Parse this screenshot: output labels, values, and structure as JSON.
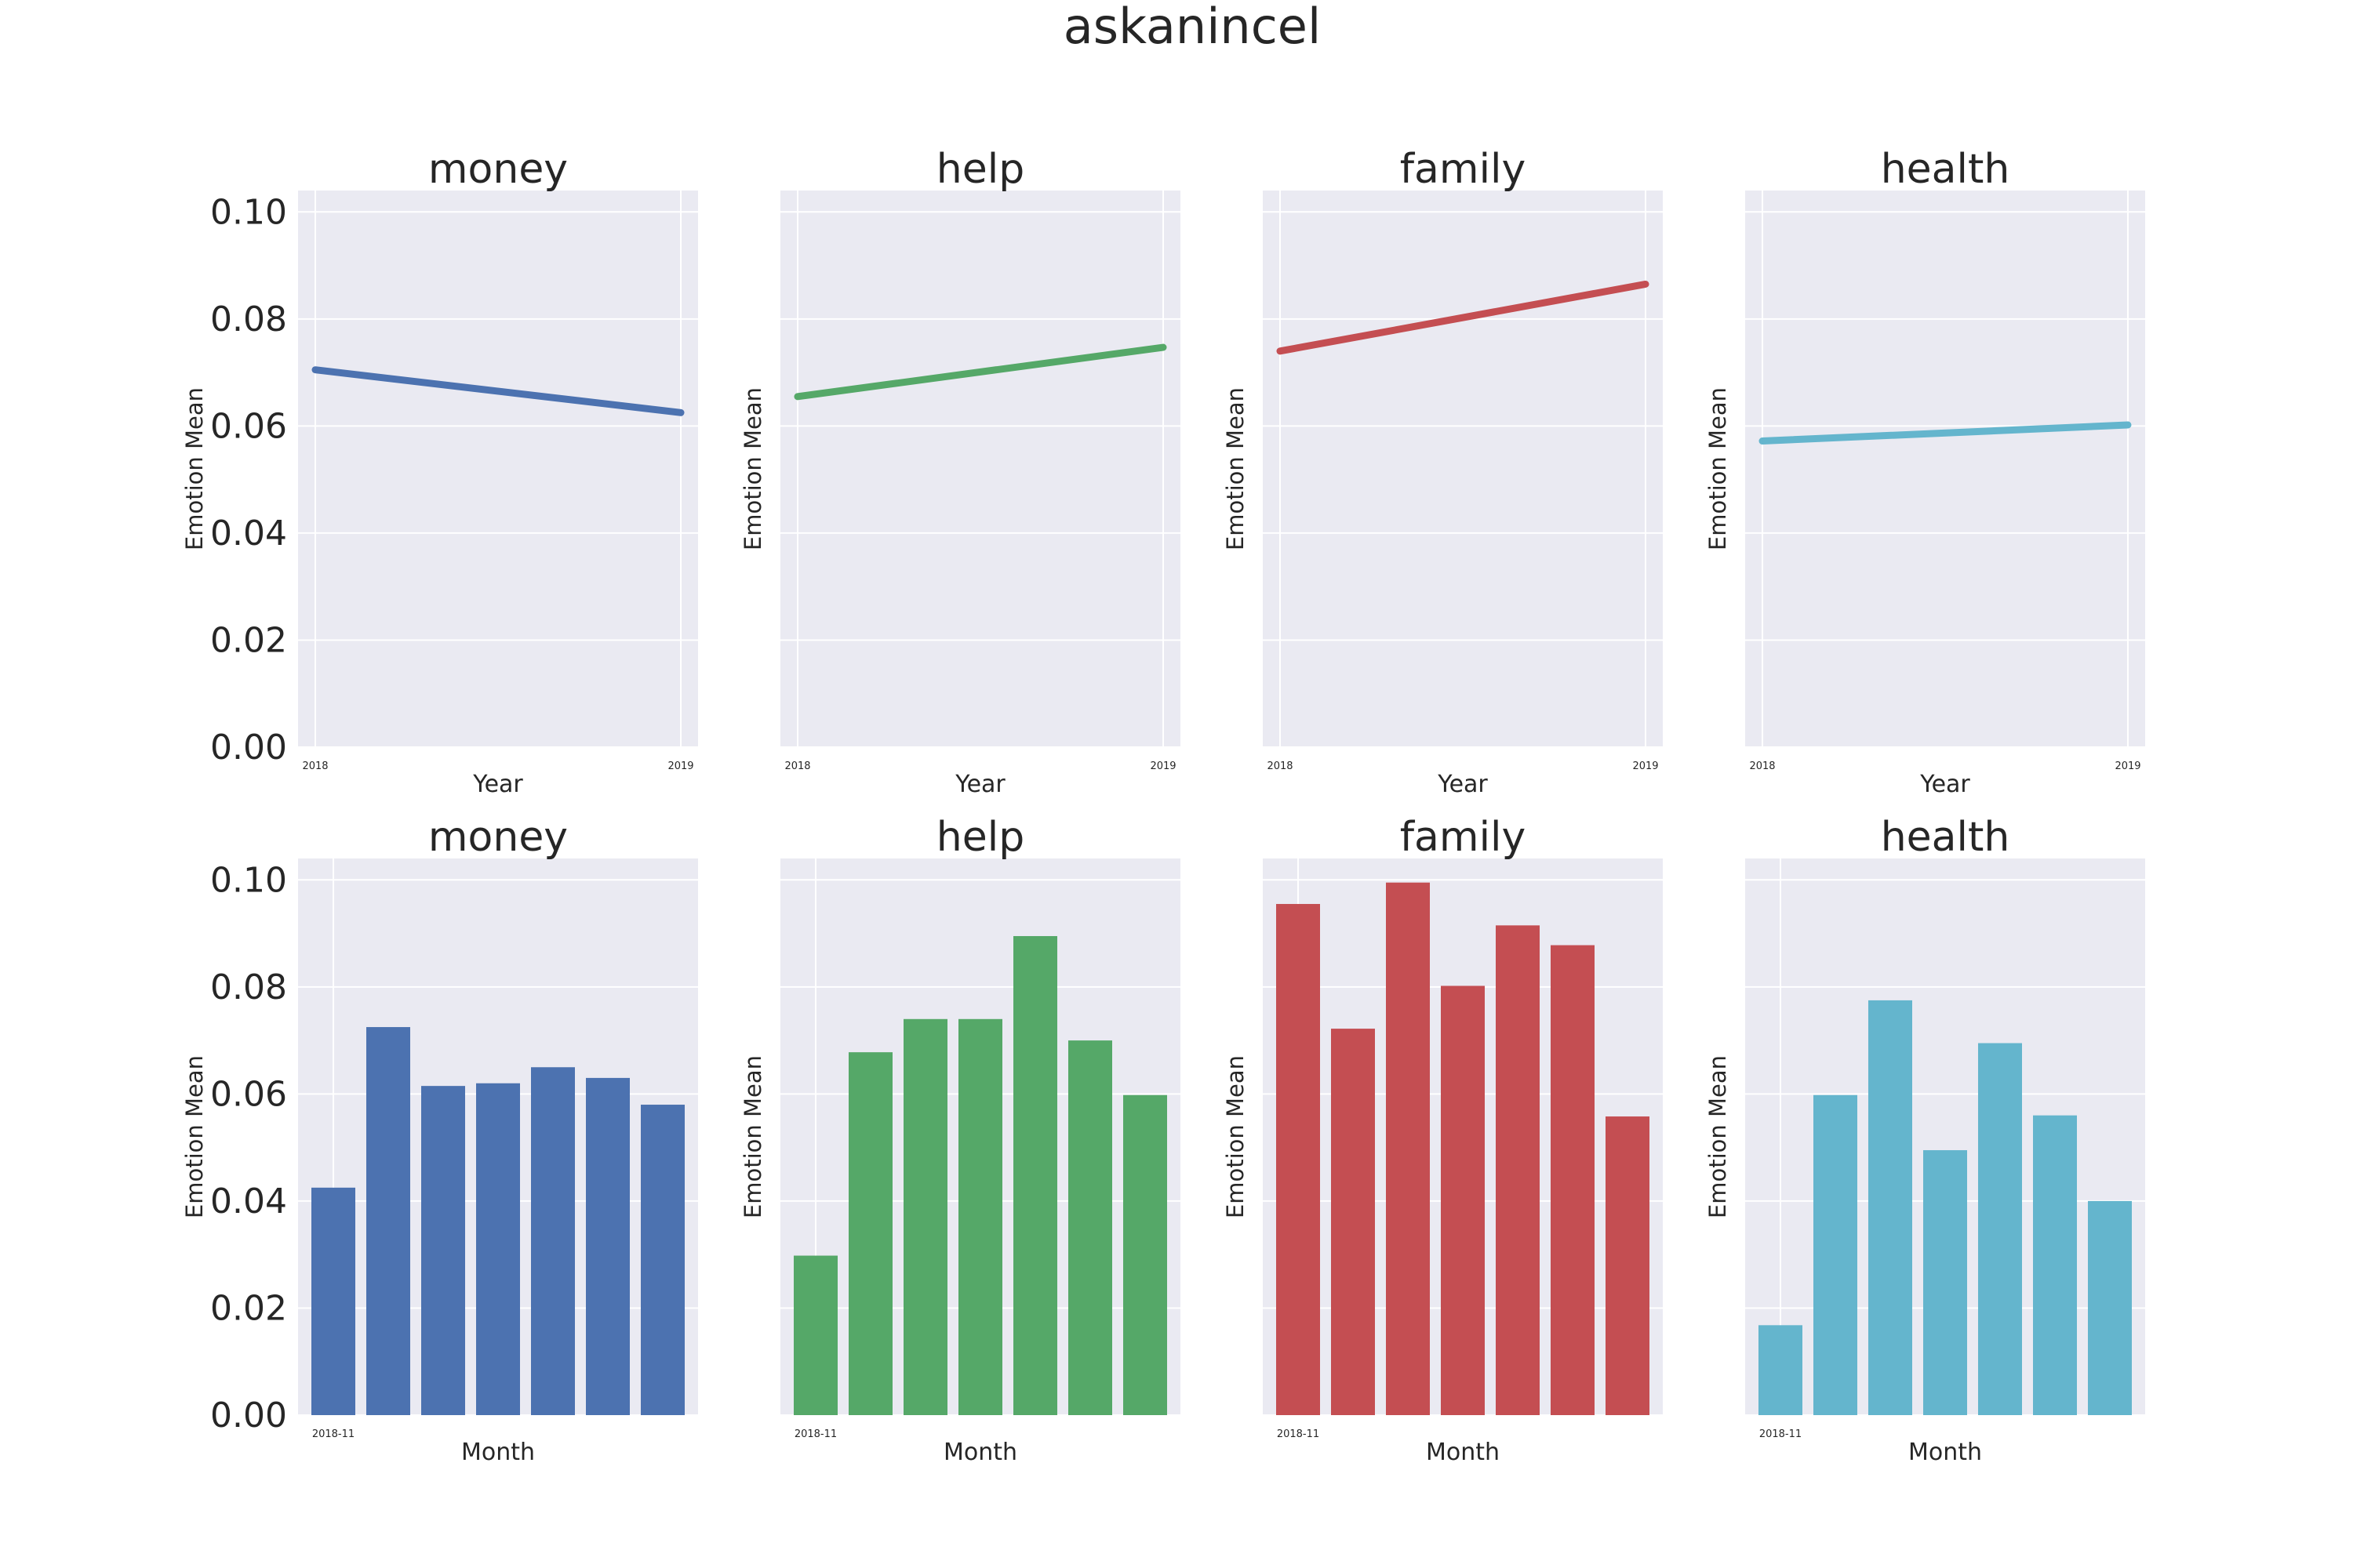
{
  "figure_title": "askanincel",
  "chart_data": [
    {
      "type": "line",
      "title": "money",
      "xlabel": "Year",
      "ylabel": "Emotion Mean",
      "x": [
        "2018",
        "2019"
      ],
      "xtick_labels": [
        "2018",
        "2019"
      ],
      "values": [
        0.0705,
        0.0625
      ],
      "ylim": [
        0,
        0.104
      ],
      "yticks": [
        "0.00",
        "0.02",
        "0.04",
        "0.06",
        "0.08",
        "0.10"
      ],
      "show_yticks": true,
      "grid": true,
      "color": "#4c72b0"
    },
    {
      "type": "line",
      "title": "help",
      "xlabel": "Year",
      "ylabel": "Emotion Mean",
      "x": [
        "2018",
        "2019"
      ],
      "xtick_labels": [
        "2018",
        "2019"
      ],
      "values": [
        0.0655,
        0.0747
      ],
      "ylim": [
        0,
        0.104
      ],
      "yticks": [
        "0.00",
        "0.02",
        "0.04",
        "0.06",
        "0.08",
        "0.10"
      ],
      "show_yticks": false,
      "grid": true,
      "color": "#55a868"
    },
    {
      "type": "line",
      "title": "family",
      "xlabel": "Year",
      "ylabel": "Emotion Mean",
      "x": [
        "2018",
        "2019"
      ],
      "xtick_labels": [
        "2018",
        "2019"
      ],
      "values": [
        0.074,
        0.0865
      ],
      "ylim": [
        0,
        0.104
      ],
      "yticks": [
        "0.00",
        "0.02",
        "0.04",
        "0.06",
        "0.08",
        "0.10"
      ],
      "show_yticks": false,
      "grid": true,
      "color": "#c44e52"
    },
    {
      "type": "line",
      "title": "health",
      "xlabel": "Year",
      "ylabel": "Emotion Mean",
      "x": [
        "2018",
        "2019"
      ],
      "xtick_labels": [
        "2018",
        "2019"
      ],
      "values": [
        0.0572,
        0.0602
      ],
      "ylim": [
        0,
        0.104
      ],
      "yticks": [
        "0.00",
        "0.02",
        "0.04",
        "0.06",
        "0.08",
        "0.10"
      ],
      "show_yticks": false,
      "grid": true,
      "color": "#64b5cd"
    },
    {
      "type": "bar",
      "title": "money",
      "xlabel": "Month",
      "ylabel": "Emotion Mean",
      "xtick_labels": [
        "2018-11"
      ],
      "values": [
        0.0425,
        0.0725,
        0.0615,
        0.062,
        0.065,
        0.063,
        0.058
      ],
      "ylim": [
        0,
        0.104
      ],
      "yticks": [
        "0.00",
        "0.02",
        "0.04",
        "0.06",
        "0.08",
        "0.10"
      ],
      "show_yticks": true,
      "grid": true,
      "color": "#4c72b0"
    },
    {
      "type": "bar",
      "title": "help",
      "xlabel": "Month",
      "ylabel": "Emotion Mean",
      "xtick_labels": [
        "2018-11"
      ],
      "values": [
        0.0298,
        0.0678,
        0.074,
        0.074,
        0.0895,
        0.07,
        0.0598
      ],
      "ylim": [
        0,
        0.104
      ],
      "yticks": [
        "0.00",
        "0.02",
        "0.04",
        "0.06",
        "0.08",
        "0.10"
      ],
      "show_yticks": false,
      "grid": true,
      "color": "#55a868"
    },
    {
      "type": "bar",
      "title": "family",
      "xlabel": "Month",
      "ylabel": "Emotion Mean",
      "xtick_labels": [
        "2018-11"
      ],
      "values": [
        0.0955,
        0.0722,
        0.0995,
        0.0802,
        0.0915,
        0.0878,
        0.0558
      ],
      "ylim": [
        0,
        0.104
      ],
      "yticks": [
        "0.00",
        "0.02",
        "0.04",
        "0.06",
        "0.08",
        "0.10"
      ],
      "show_yticks": false,
      "grid": true,
      "color": "#c44e52"
    },
    {
      "type": "bar",
      "title": "health",
      "xlabel": "Month",
      "ylabel": "Emotion Mean",
      "xtick_labels": [
        "2018-11"
      ],
      "values": [
        0.0168,
        0.0598,
        0.0775,
        0.0495,
        0.0695,
        0.056,
        0.04
      ],
      "ylim": [
        0,
        0.104
      ],
      "yticks": [
        "0.00",
        "0.02",
        "0.04",
        "0.06",
        "0.08",
        "0.10"
      ],
      "show_yticks": false,
      "grid": true,
      "color": "#64b5cd"
    }
  ]
}
